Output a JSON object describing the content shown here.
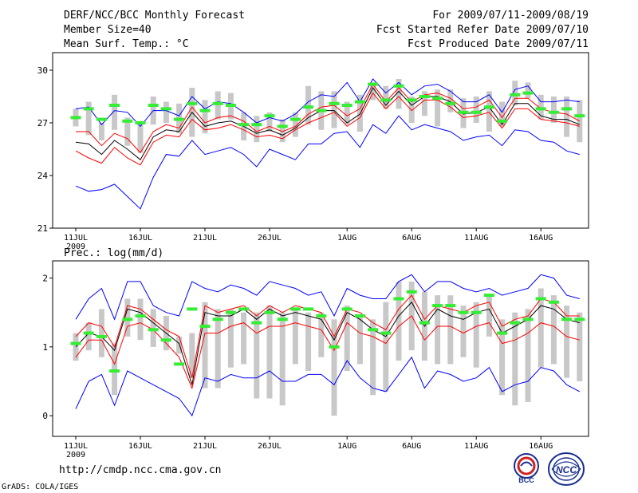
{
  "header": {
    "title": "DERF/NCC/BCC Monthly Forecast",
    "member_size": "Member Size=40",
    "variable": "Mean Surf. Temp.: °C",
    "period": "For 2009/07/11-2009/08/19",
    "start": "Fcst Started Refer Date 2009/07/10",
    "produced": "Fcst Produced Date 2009/07/11"
  },
  "footer": {
    "url": "http://cmdp.ncc.cma.gov.cn",
    "grads": "GrADS: COLA/IGES",
    "logo_bcc": "BCC",
    "logo_ncc": "NCC"
  },
  "colors": {
    "envelope": "#0000ff",
    "spread": "#ff0000",
    "mean": "#000000",
    "box": "#c8c8c8",
    "observed": "#33ee33"
  },
  "chart_data": [
    {
      "type": "line",
      "title": "Mean Surf. Temp.: °C",
      "ylim": [
        21,
        31
      ],
      "yticks": [
        21,
        24,
        27,
        30
      ],
      "xticks": [
        {
          "index": 0,
          "label": "11JUL",
          "sub": "2009"
        },
        {
          "index": 5,
          "label": "16JUL"
        },
        {
          "index": 10,
          "label": "21JUL"
        },
        {
          "index": 15,
          "label": "26JUL"
        },
        {
          "index": 21,
          "label": "1AUG"
        },
        {
          "index": 26,
          "label": "6AUG"
        },
        {
          "index": 31,
          "label": "11AUG"
        },
        {
          "index": 36,
          "label": "16AUG"
        }
      ],
      "series": [
        {
          "name": "max",
          "color": "#0000ff",
          "values": [
            27.8,
            27.9,
            26.9,
            27.7,
            27.6,
            26.8,
            27.7,
            27.7,
            27.4,
            28.5,
            27.8,
            28.2,
            28.1,
            27.6,
            27.0,
            27.3,
            27.1,
            27.5,
            28.2,
            28.6,
            28.5,
            29.3,
            28.2,
            29.5,
            28.7,
            29.3,
            28.6,
            29.1,
            29.2,
            28.8,
            28.2,
            28.2,
            28.6,
            27.6,
            28.9,
            29.1,
            28.2,
            28.2,
            28.3,
            28.2
          ]
        },
        {
          "name": "upper",
          "color": "#ff0000",
          "values": [
            26.5,
            26.5,
            25.7,
            26.4,
            26.1,
            25.3,
            26.5,
            26.9,
            26.7,
            27.9,
            27.0,
            27.3,
            27.4,
            27.1,
            26.5,
            26.8,
            26.5,
            26.8,
            27.5,
            27.9,
            28.0,
            27.4,
            27.8,
            29.2,
            28.2,
            29.0,
            28.2,
            28.6,
            28.7,
            28.4,
            27.8,
            27.9,
            28.3,
            27.3,
            28.4,
            28.4,
            27.8,
            27.6,
            27.5,
            27.1
          ]
        },
        {
          "name": "ensemble-mean",
          "color": "#000000",
          "values": [
            25.9,
            25.8,
            25.2,
            26.0,
            25.5,
            24.9,
            26.2,
            26.6,
            26.5,
            27.6,
            26.8,
            27.0,
            27.1,
            26.8,
            26.4,
            26.6,
            26.3,
            26.7,
            27.3,
            27.7,
            27.7,
            27.0,
            27.5,
            29.0,
            28.0,
            28.8,
            28.0,
            28.5,
            28.5,
            28.2,
            27.5,
            27.6,
            27.9,
            26.9,
            28.1,
            28.1,
            27.4,
            27.2,
            27.2,
            26.9
          ]
        },
        {
          "name": "lower",
          "color": "#ff0000",
          "values": [
            25.4,
            25.0,
            24.7,
            25.6,
            25.0,
            24.6,
            25.9,
            26.3,
            26.2,
            27.2,
            26.6,
            26.7,
            26.9,
            26.6,
            26.2,
            26.3,
            26.1,
            26.6,
            27.0,
            27.3,
            27.6,
            26.8,
            27.3,
            28.7,
            27.8,
            28.5,
            27.7,
            28.3,
            28.3,
            27.9,
            27.3,
            27.4,
            27.6,
            26.7,
            27.8,
            27.8,
            27.2,
            27.1,
            27.0,
            26.8
          ]
        },
        {
          "name": "min",
          "color": "#0000ff",
          "values": [
            23.4,
            23.1,
            23.2,
            23.5,
            22.8,
            22.1,
            23.9,
            25.2,
            25.1,
            26.0,
            25.2,
            25.4,
            25.6,
            25.2,
            24.5,
            25.5,
            25.2,
            24.9,
            25.8,
            25.8,
            26.4,
            26.5,
            25.6,
            26.9,
            26.4,
            27.4,
            26.6,
            26.9,
            26.7,
            26.5,
            26.0,
            26.2,
            26.3,
            25.7,
            26.6,
            26.5,
            26.0,
            25.9,
            25.4,
            25.2
          ]
        }
      ],
      "boxes": {
        "low": [
          26.8,
          26.3,
          26.0,
          26.6,
          25.7,
          25.3,
          26.9,
          27.0,
          26.4,
          26.2,
          26.4,
          27.2,
          27.2,
          26.0,
          25.9,
          26.5,
          25.9,
          26.2,
          26.9,
          26.6,
          26.7,
          26.9,
          26.5,
          28.3,
          27.8,
          27.8,
          27.0,
          27.4,
          26.8,
          27.6,
          26.7,
          27.0,
          26.5,
          26.8,
          28.0,
          28.4,
          27.2,
          27.0,
          26.2,
          25.9
        ],
        "high": [
          27.8,
          28.2,
          27.0,
          28.6,
          27.3,
          27.1,
          28.5,
          28.2,
          28.1,
          29.0,
          28.3,
          28.8,
          28.7,
          27.6,
          27.4,
          27.6,
          27.2,
          27.6,
          29.1,
          28.8,
          28.8,
          28.2,
          28.6,
          29.3,
          29.1,
          29.5,
          28.5,
          28.8,
          28.9,
          28.9,
          28.4,
          28.5,
          28.8,
          28.2,
          29.4,
          29.3,
          28.6,
          28.5,
          28.5,
          28.3
        ]
      },
      "observed": [
        27.3,
        27.8,
        27.2,
        28.0,
        27.1,
        27.0,
        28.0,
        27.8,
        27.2,
        28.1,
        27.7,
        28.1,
        28.0,
        26.9,
        26.9,
        27.4,
        26.8,
        27.2,
        27.9,
        27.7,
        28.1,
        28.0,
        28.2,
        29.2,
        28.3,
        29.1,
        28.3,
        28.5,
        28.4,
        28.1,
        27.6,
        27.6,
        27.9,
        27.1,
        28.6,
        28.7,
        27.8,
        27.6,
        27.8,
        27.4
      ]
    },
    {
      "type": "line",
      "title": "Prec.: log(mm/d)",
      "ylim": [
        -0.3,
        2.25
      ],
      "yticks": [
        0,
        1,
        2
      ],
      "xticks": [
        {
          "index": 0,
          "label": "11JUL",
          "sub": "2009"
        },
        {
          "index": 5,
          "label": "16JUL"
        },
        {
          "index": 10,
          "label": "21JUL"
        },
        {
          "index": 15,
          "label": "26JUL"
        },
        {
          "index": 21,
          "label": "1AUG"
        },
        {
          "index": 26,
          "label": "6AUG"
        },
        {
          "index": 31,
          "label": "11AUG"
        },
        {
          "index": 36,
          "label": "16AUG"
        }
      ],
      "series": [
        {
          "name": "max",
          "color": "#0000ff",
          "values": [
            1.4,
            1.7,
            1.85,
            1.4,
            1.95,
            1.95,
            1.6,
            1.5,
            1.45,
            1.95,
            1.85,
            1.8,
            1.9,
            1.85,
            1.75,
            1.95,
            1.9,
            1.85,
            1.75,
            1.8,
            1.45,
            1.85,
            1.75,
            1.7,
            1.7,
            1.95,
            2.05,
            1.8,
            1.95,
            1.95,
            1.85,
            1.8,
            1.85,
            1.75,
            1.8,
            1.85,
            2.05,
            2.0,
            1.75,
            1.7
          ]
        },
        {
          "name": "upper",
          "color": "#ff0000",
          "values": [
            1.15,
            1.35,
            1.3,
            1.0,
            1.6,
            1.55,
            1.4,
            1.25,
            1.15,
            0.55,
            1.6,
            1.5,
            1.55,
            1.6,
            1.45,
            1.6,
            1.5,
            1.6,
            1.55,
            1.5,
            1.15,
            1.55,
            1.5,
            1.35,
            1.25,
            1.55,
            1.75,
            1.4,
            1.6,
            1.55,
            1.5,
            1.6,
            1.65,
            1.3,
            1.4,
            1.45,
            1.7,
            1.65,
            1.45,
            1.45
          ]
        },
        {
          "name": "ensemble-mean",
          "color": "#000000",
          "values": [
            1.0,
            1.2,
            1.15,
            0.95,
            1.55,
            1.5,
            1.35,
            1.2,
            1.05,
            0.45,
            1.5,
            1.45,
            1.45,
            1.55,
            1.4,
            1.55,
            1.45,
            1.5,
            1.45,
            1.4,
            1.1,
            1.5,
            1.4,
            1.25,
            1.15,
            1.45,
            1.65,
            1.3,
            1.55,
            1.45,
            1.4,
            1.5,
            1.55,
            1.2,
            1.3,
            1.4,
            1.6,
            1.55,
            1.4,
            1.35
          ]
        },
        {
          "name": "lower",
          "color": "#ff0000",
          "values": [
            0.85,
            1.1,
            1.1,
            0.75,
            1.3,
            1.35,
            1.25,
            1.05,
            0.85,
            0.4,
            1.2,
            1.2,
            1.3,
            1.35,
            1.2,
            1.3,
            1.3,
            1.35,
            1.3,
            1.25,
            0.95,
            1.35,
            1.2,
            1.15,
            1.05,
            1.3,
            1.45,
            1.1,
            1.3,
            1.3,
            1.2,
            1.3,
            1.35,
            1.05,
            1.1,
            1.2,
            1.35,
            1.3,
            1.15,
            1.1
          ]
        },
        {
          "name": "min",
          "color": "#0000ff",
          "values": [
            0.1,
            0.5,
            0.6,
            0.15,
            0.65,
            0.55,
            0.45,
            0.35,
            0.25,
            0.0,
            0.55,
            0.5,
            0.6,
            0.55,
            0.55,
            0.65,
            0.5,
            0.5,
            0.6,
            0.6,
            0.45,
            0.8,
            0.55,
            0.4,
            0.35,
            0.6,
            0.85,
            0.4,
            0.65,
            0.6,
            0.5,
            0.55,
            0.7,
            0.35,
            0.45,
            0.5,
            0.7,
            0.65,
            0.45,
            0.35
          ]
        }
      ],
      "boxes": {
        "low": [
          0.8,
          0.95,
          0.85,
          0.3,
          1.15,
          1.1,
          1.0,
          0.95,
          0.9,
          0.55,
          0.4,
          0.4,
          0.7,
          0.75,
          0.25,
          0.25,
          0.15,
          0.75,
          0.65,
          0.85,
          0.0,
          0.65,
          0.75,
          0.3,
          0.35,
          0.8,
          0.95,
          0.8,
          0.75,
          0.75,
          0.85,
          0.7,
          1.15,
          0.3,
          0.15,
          0.2,
          0.7,
          0.75,
          0.55,
          0.5
        ],
        "high": [
          1.2,
          1.35,
          1.55,
          1.05,
          1.7,
          1.7,
          1.55,
          1.45,
          1.15,
          1.2,
          1.65,
          1.55,
          1.55,
          1.5,
          1.5,
          1.6,
          1.5,
          1.55,
          1.5,
          1.5,
          1.4,
          1.6,
          1.45,
          1.4,
          1.65,
          1.95,
          1.95,
          1.8,
          1.75,
          1.75,
          1.6,
          1.65,
          1.75,
          1.4,
          1.5,
          1.55,
          1.85,
          1.75,
          1.6,
          1.5
        ]
      },
      "observed": [
        1.05,
        1.2,
        1.15,
        0.65,
        1.4,
        1.45,
        1.25,
        1.1,
        0.75,
        1.55,
        1.3,
        1.4,
        1.5,
        1.55,
        1.35,
        1.5,
        1.4,
        1.55,
        1.55,
        1.45,
        1.0,
        1.55,
        1.45,
        1.25,
        1.2,
        1.7,
        1.8,
        1.35,
        1.6,
        1.6,
        1.5,
        1.5,
        1.75,
        1.2,
        1.35,
        1.4,
        1.7,
        1.65,
        1.4,
        1.4
      ]
    }
  ]
}
